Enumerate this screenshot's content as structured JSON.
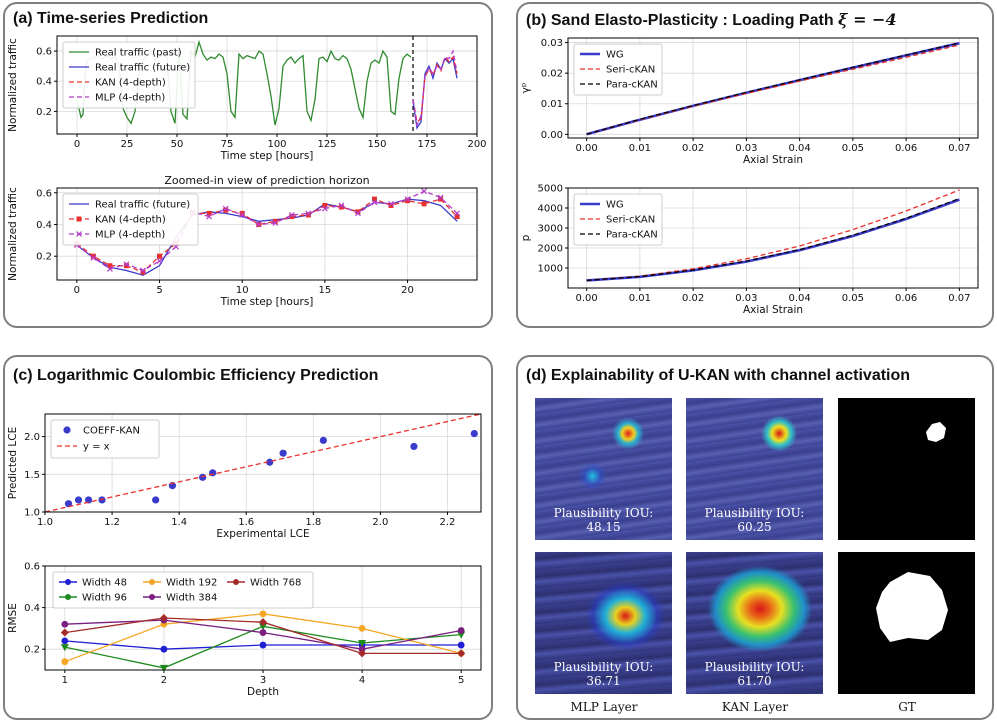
{
  "panels": {
    "a": {
      "title": "(a) Time-series Prediction"
    },
    "b": {
      "title_prefix": "(b) Sand Elasto-Plasticity : Loading Path ",
      "title_math": "ξ = −4"
    },
    "c": {
      "title": "(c) Logarithmic Coulombic Efficiency Prediction"
    },
    "d": {
      "title": "(d) Explainability of U-KAN with channel activation",
      "tiles": [
        {
          "label": "Plausibility IOU: 48.15"
        },
        {
          "label": "Plausibility IOU: 60.25"
        },
        {
          "label": "Plausibility IOU: 36.71"
        },
        {
          "label": "Plausibility IOU: 61.70"
        }
      ],
      "columns": [
        "MLP Layer",
        "KAN Layer",
        "GT"
      ]
    }
  },
  "colors": {
    "green": "#2e8b2e",
    "blue": "#3a3acc",
    "red": "#e8302e",
    "purple": "#b43cc8",
    "black": "#000000"
  },
  "chart_data": [
    {
      "id": "a1",
      "type": "line",
      "xlabel": "Time step [hours]",
      "ylabel": "Normalized traffic",
      "xlim": [
        -10,
        200
      ],
      "ylim": [
        0.05,
        0.7
      ],
      "xticks": [
        0,
        25,
        50,
        75,
        100,
        125,
        150,
        175,
        200
      ],
      "yticks": [
        0.2,
        0.4,
        0.6
      ],
      "vline": 168,
      "legend": "top-left",
      "legend_entries": [
        "Real traffic (past)",
        "Real traffic (future)",
        "KAN (4-depth)",
        "MLP (4-depth)"
      ],
      "series": [
        {
          "name": "Real traffic (past)",
          "color": "green",
          "style": "solid",
          "x": [
            0,
            1,
            2,
            3,
            4,
            5,
            7,
            9,
            11,
            13,
            15,
            17,
            19,
            21,
            23,
            25,
            27,
            29,
            31,
            33,
            35,
            37,
            39,
            41,
            43,
            45,
            47,
            49,
            51,
            53,
            55,
            57,
            59,
            61,
            63,
            65,
            67,
            69,
            71,
            73,
            75,
            77,
            79,
            81,
            83,
            85,
            87,
            89,
            91,
            93,
            95,
            97,
            99,
            101,
            103,
            105,
            107,
            109,
            111,
            113,
            115,
            117,
            119,
            121,
            123,
            125,
            127,
            129,
            131,
            133,
            135,
            137,
            139,
            141,
            143,
            145,
            147,
            149,
            151,
            153,
            155,
            157,
            159,
            161,
            163,
            165,
            167
          ],
          "y": [
            0.27,
            0.22,
            0.16,
            0.18,
            0.42,
            0.54,
            0.55,
            0.56,
            0.56,
            0.55,
            0.57,
            0.55,
            0.56,
            0.5,
            0.22,
            0.16,
            0.12,
            0.2,
            0.45,
            0.54,
            0.57,
            0.6,
            0.54,
            0.56,
            0.58,
            0.55,
            0.2,
            0.12,
            0.63,
            0.18,
            0.15,
            0.6,
            0.56,
            0.66,
            0.58,
            0.54,
            0.56,
            0.55,
            0.58,
            0.56,
            0.45,
            0.2,
            0.16,
            0.58,
            0.55,
            0.57,
            0.56,
            0.55,
            0.6,
            0.58,
            0.45,
            0.3,
            0.11,
            0.22,
            0.5,
            0.54,
            0.56,
            0.52,
            0.55,
            0.57,
            0.2,
            0.14,
            0.28,
            0.55,
            0.56,
            0.53,
            0.6,
            0.55,
            0.54,
            0.57,
            0.55,
            0.48,
            0.35,
            0.22,
            0.16,
            0.4,
            0.52,
            0.54,
            0.52,
            0.6,
            0.56,
            0.2,
            0.18,
            0.42,
            0.55,
            0.58,
            0.56
          ]
        },
        {
          "name": "Real traffic (future)",
          "color": "blue",
          "style": "solid",
          "x": [
            168,
            170,
            172,
            174,
            176,
            178,
            180,
            182,
            184,
            186,
            188,
            190
          ],
          "y": [
            0.27,
            0.09,
            0.13,
            0.45,
            0.5,
            0.42,
            0.52,
            0.48,
            0.55,
            0.52,
            0.55,
            0.42
          ]
        },
        {
          "name": "KAN (4-depth)",
          "color": "red",
          "style": "dashed",
          "x": [
            168,
            170,
            172,
            174,
            176,
            178,
            180,
            182,
            184,
            186,
            188,
            190
          ],
          "y": [
            0.28,
            0.13,
            0.15,
            0.43,
            0.48,
            0.44,
            0.51,
            0.47,
            0.56,
            0.53,
            0.56,
            0.45
          ]
        },
        {
          "name": "MLP (4-depth)",
          "color": "purple",
          "style": "dashed",
          "x": [
            168,
            170,
            172,
            174,
            176,
            178,
            180,
            182,
            184,
            186,
            188,
            190
          ],
          "y": [
            0.28,
            0.11,
            0.17,
            0.43,
            0.49,
            0.45,
            0.5,
            0.48,
            0.56,
            0.55,
            0.6,
            0.46
          ]
        }
      ]
    },
    {
      "id": "a2",
      "type": "line",
      "title": "Zoomed-in view of prediction horizon",
      "xlabel": "Time step [hours]",
      "ylabel": "Normalized traffic",
      "xlim": [
        -1.2,
        24.2
      ],
      "ylim": [
        0.05,
        0.63
      ],
      "xticks": [
        0,
        5,
        10,
        15,
        20
      ],
      "yticks": [
        0.2,
        0.4,
        0.6
      ],
      "legend": "top-left",
      "legend_entries": [
        "Real traffic (future)",
        "KAN (4-depth)",
        "MLP (4-depth)"
      ],
      "series": [
        {
          "name": "Real traffic (future)",
          "color": "blue",
          "style": "solid",
          "marker": "none",
          "x": [
            0,
            1,
            2,
            3,
            4,
            5,
            6,
            7,
            8,
            9,
            10,
            11,
            12,
            13,
            14,
            15,
            16,
            17,
            18,
            19,
            20,
            21,
            22,
            23
          ],
          "y": [
            0.27,
            0.19,
            0.13,
            0.11,
            0.08,
            0.14,
            0.32,
            0.46,
            0.48,
            0.47,
            0.45,
            0.42,
            0.43,
            0.44,
            0.46,
            0.53,
            0.51,
            0.48,
            0.54,
            0.53,
            0.56,
            0.55,
            0.52,
            0.42
          ]
        },
        {
          "name": "KAN (4-depth)",
          "color": "red",
          "style": "dashed",
          "marker": "square",
          "x": [
            0,
            1,
            2,
            3,
            4,
            5,
            6,
            7,
            8,
            9,
            10,
            11,
            12,
            13,
            14,
            15,
            16,
            17,
            18,
            19,
            20,
            21,
            22,
            23
          ],
          "y": [
            0.28,
            0.2,
            0.14,
            0.14,
            0.1,
            0.2,
            0.28,
            0.47,
            0.47,
            0.49,
            0.47,
            0.4,
            0.42,
            0.45,
            0.46,
            0.52,
            0.51,
            0.48,
            0.56,
            0.52,
            0.55,
            0.53,
            0.56,
            0.45
          ]
        },
        {
          "name": "MLP (4-depth)",
          "color": "purple",
          "style": "dashed",
          "marker": "x",
          "x": [
            0,
            1,
            2,
            3,
            4,
            5,
            6,
            7,
            8,
            9,
            10,
            11,
            12,
            13,
            14,
            15,
            16,
            17,
            18,
            19,
            20,
            21,
            22,
            23
          ],
          "y": [
            0.27,
            0.19,
            0.12,
            0.15,
            0.11,
            0.17,
            0.26,
            0.48,
            0.45,
            0.5,
            0.46,
            0.4,
            0.41,
            0.46,
            0.47,
            0.5,
            0.52,
            0.47,
            0.54,
            0.53,
            0.56,
            0.61,
            0.57,
            0.47
          ]
        }
      ]
    },
    {
      "id": "b1",
      "type": "line",
      "xlabel": "Axial Strain",
      "ylabel": "γᵖ",
      "xlim": [
        -0.0035,
        0.0735
      ],
      "ylim": [
        -0.0012,
        0.0315
      ],
      "xticks": [
        0.0,
        0.01,
        0.02,
        0.03,
        0.04,
        0.05,
        0.06,
        0.07
      ],
      "yticks": [
        0.0,
        0.01,
        0.02,
        0.03
      ],
      "legend": "top-left",
      "legend_entries": [
        "WG",
        "Seri-cKAN",
        "Para-cKAN"
      ],
      "series": [
        {
          "name": "WG",
          "color": "blue",
          "style": "thick",
          "x": [
            0,
            0.01,
            0.02,
            0.03,
            0.04,
            0.05,
            0.06,
            0.07
          ],
          "y": [
            0,
            0.0048,
            0.0093,
            0.0136,
            0.0177,
            0.0218,
            0.0258,
            0.0298
          ]
        },
        {
          "name": "Seri-cKAN",
          "color": "red",
          "style": "dashed",
          "x": [
            0,
            0.01,
            0.02,
            0.03,
            0.04,
            0.05,
            0.06,
            0.07
          ],
          "y": [
            0,
            0.0048,
            0.0092,
            0.0134,
            0.0174,
            0.0213,
            0.0252,
            0.0292
          ]
        },
        {
          "name": "Para-cKAN",
          "color": "black",
          "style": "dashed",
          "x": [
            0,
            0.01,
            0.02,
            0.03,
            0.04,
            0.05,
            0.06,
            0.07
          ],
          "y": [
            0,
            0.0049,
            0.0094,
            0.0137,
            0.0178,
            0.0219,
            0.0259,
            0.0299
          ]
        }
      ]
    },
    {
      "id": "b2",
      "type": "line",
      "xlabel": "Axial Strain",
      "ylabel": "p",
      "xlim": [
        -0.0035,
        0.0735
      ],
      "ylim": [
        0,
        5000
      ],
      "xticks": [
        0.0,
        0.01,
        0.02,
        0.03,
        0.04,
        0.05,
        0.06,
        0.07
      ],
      "yticks": [
        1000,
        2000,
        3000,
        4000,
        5000
      ],
      "legend": "top-left",
      "legend_entries": [
        "WG",
        "Seri-cKAN",
        "Para-cKAN"
      ],
      "series": [
        {
          "name": "WG",
          "color": "blue",
          "style": "thick",
          "x": [
            0,
            0.01,
            0.02,
            0.03,
            0.04,
            0.05,
            0.06,
            0.07
          ],
          "y": [
            380,
            560,
            880,
            1320,
            1890,
            2600,
            3450,
            4420
          ]
        },
        {
          "name": "Seri-cKAN",
          "color": "red",
          "style": "dashed",
          "x": [
            0,
            0.01,
            0.02,
            0.03,
            0.04,
            0.05,
            0.06,
            0.07
          ],
          "y": [
            380,
            590,
            960,
            1460,
            2100,
            2920,
            3850,
            4900
          ]
        },
        {
          "name": "Para-cKAN",
          "color": "black",
          "style": "dashed",
          "x": [
            0,
            0.01,
            0.02,
            0.03,
            0.04,
            0.05,
            0.06,
            0.07
          ],
          "y": [
            380,
            570,
            900,
            1350,
            1920,
            2640,
            3490,
            4470
          ]
        }
      ]
    },
    {
      "id": "c1",
      "type": "scatter",
      "xlabel": "Experimental LCE",
      "ylabel": "Predicted LCE",
      "xlim": [
        1.0,
        2.3
      ],
      "ylim": [
        1.0,
        2.3
      ],
      "xticks": [
        1.0,
        1.2,
        1.4,
        1.6,
        1.8,
        2.0,
        2.2
      ],
      "yticks": [
        1.0,
        1.5,
        2.0
      ],
      "legend": "top-left",
      "legend_entries": [
        "COEFF-KAN",
        "y = x"
      ],
      "series": [
        {
          "name": "COEFF-KAN",
          "color": "blue",
          "style": "points",
          "x": [
            1.07,
            1.1,
            1.13,
            1.17,
            1.33,
            1.38,
            1.47,
            1.5,
            1.67,
            1.71,
            1.83,
            2.1,
            2.28
          ],
          "y": [
            1.11,
            1.16,
            1.16,
            1.16,
            1.16,
            1.35,
            1.46,
            1.52,
            1.66,
            1.78,
            1.95,
            1.87,
            2.04
          ]
        },
        {
          "name": "y = x",
          "color": "red",
          "style": "dashed",
          "x": [
            1.0,
            2.3
          ],
          "y": [
            1.0,
            2.3
          ]
        }
      ]
    },
    {
      "id": "c2",
      "type": "line",
      "xlabel": "Depth",
      "ylabel": "RMSE",
      "xlim": [
        0.8,
        5.2
      ],
      "ylim": [
        0.1,
        0.6
      ],
      "xticks": [
        1,
        2,
        3,
        4,
        5
      ],
      "yticks": [
        0.2,
        0.4,
        0.6
      ],
      "legend": "top",
      "legend_entries": [
        "Width 48",
        "Width 96",
        "Width 192",
        "Width 384",
        "Width 768"
      ],
      "series": [
        {
          "name": "Width 48",
          "color": "#1f1fd6",
          "marker": "circle",
          "x": [
            1,
            2,
            3,
            4,
            5
          ],
          "y": [
            0.24,
            0.2,
            0.22,
            0.22,
            0.22
          ]
        },
        {
          "name": "Width 96",
          "color": "#1e8a1e",
          "marker": "triangle",
          "x": [
            1,
            2,
            3,
            4,
            5
          ],
          "y": [
            0.21,
            0.11,
            0.31,
            0.23,
            0.27
          ]
        },
        {
          "name": "Width 192",
          "color": "#f5a623",
          "marker": "circle",
          "x": [
            1,
            2,
            3,
            4,
            5
          ],
          "y": [
            0.14,
            0.32,
            0.37,
            0.3,
            0.18
          ]
        },
        {
          "name": "Width 384",
          "color": "#7a1e82",
          "marker": "circle",
          "x": [
            1,
            2,
            3,
            4,
            5
          ],
          "y": [
            0.32,
            0.34,
            0.28,
            0.2,
            0.29
          ]
        },
        {
          "name": "Width 768",
          "color": "#a52a2a",
          "marker": "diamond",
          "x": [
            1,
            2,
            3,
            4,
            5
          ],
          "y": [
            0.28,
            0.35,
            0.33,
            0.18,
            0.18
          ]
        }
      ]
    }
  ]
}
